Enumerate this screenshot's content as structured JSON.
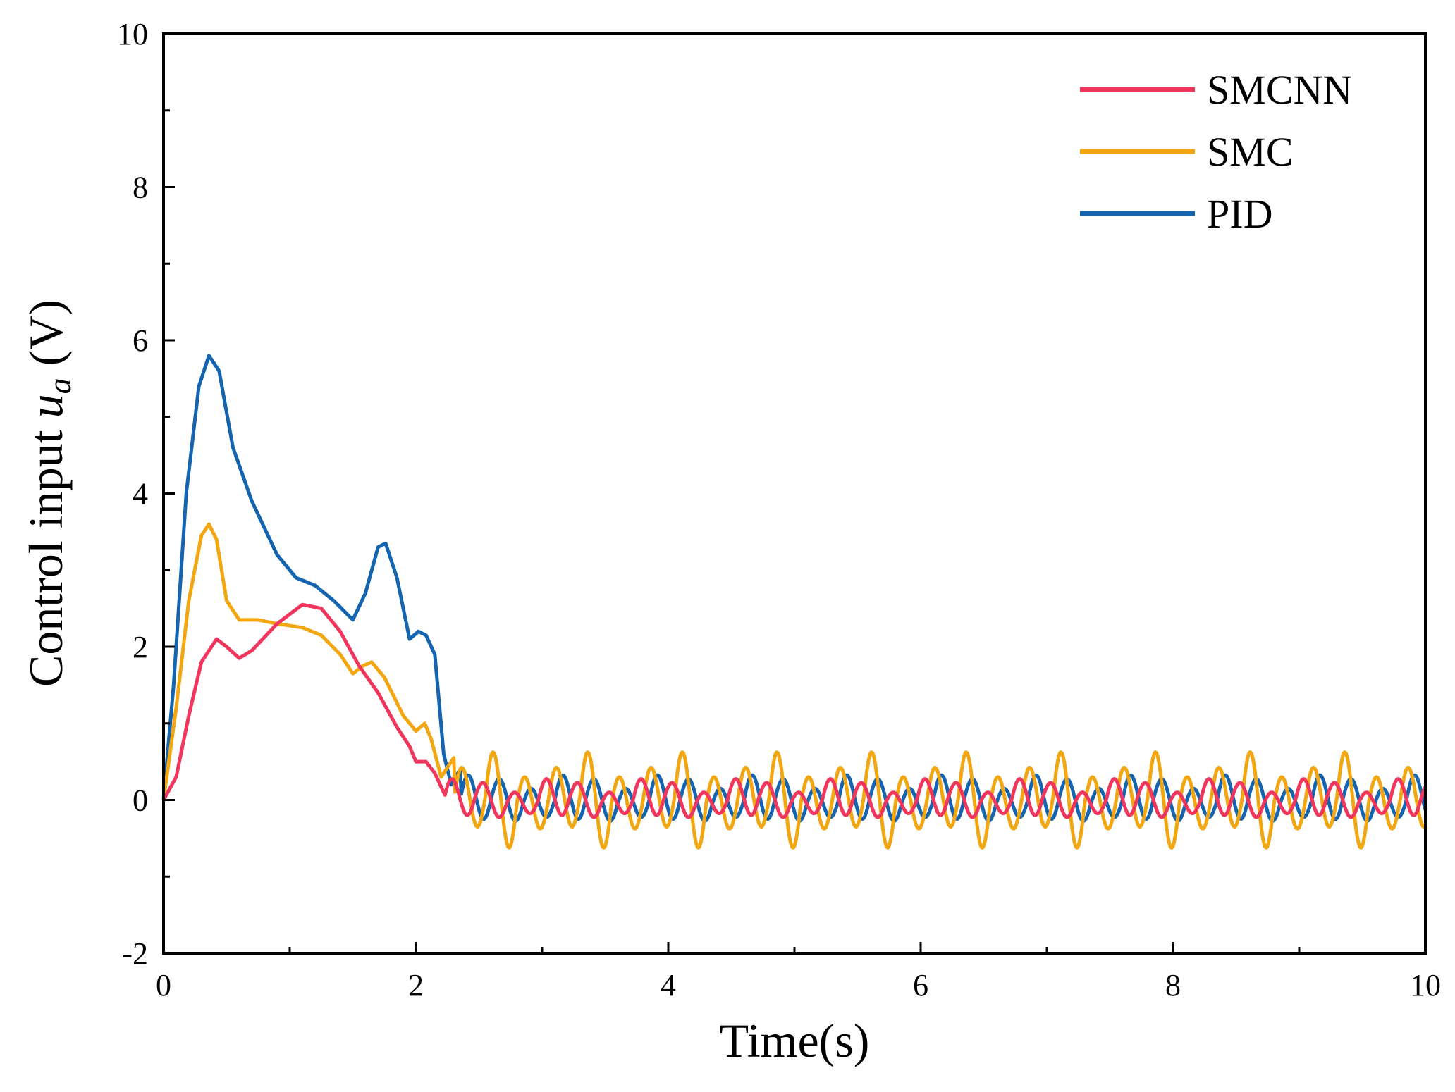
{
  "chart_data": {
    "type": "line",
    "title": "",
    "xlabel": "Time(s)",
    "ylabel_prefix": "Control input ",
    "ylabel_var": "u",
    "ylabel_sub": "a",
    "ylabel_suffix": " (V)",
    "xlim": [
      0,
      10
    ],
    "ylim": [
      -2,
      10
    ],
    "xticks": [
      0,
      2,
      4,
      6,
      8,
      10
    ],
    "yticks": [
      -2,
      0,
      2,
      4,
      6,
      8,
      10
    ],
    "xtick_labels": [
      "0",
      "2",
      "4",
      "6",
      "8",
      "10"
    ],
    "ytick_labels": [
      "-2",
      "0",
      "2",
      "4",
      "6",
      "8",
      "10"
    ],
    "legend_position": "top-right",
    "grid": false,
    "series": [
      {
        "name": "SMCNN",
        "color": "#f0365c",
        "transient": [
          [
            0,
            0
          ],
          [
            0.1,
            0.3
          ],
          [
            0.2,
            1.1
          ],
          [
            0.3,
            1.8
          ],
          [
            0.42,
            2.1
          ],
          [
            0.5,
            2.0
          ],
          [
            0.6,
            1.85
          ],
          [
            0.7,
            1.95
          ],
          [
            0.9,
            2.3
          ],
          [
            1.1,
            2.55
          ],
          [
            1.25,
            2.5
          ],
          [
            1.4,
            2.2
          ],
          [
            1.55,
            1.75
          ],
          [
            1.7,
            1.4
          ],
          [
            1.85,
            0.95
          ],
          [
            1.95,
            0.7
          ],
          [
            2.0,
            0.5
          ],
          [
            2.08,
            0.5
          ],
          [
            2.15,
            0.35
          ],
          [
            2.22,
            0.1
          ]
        ],
        "osc_start": 2.22,
        "osc_amps": [
          0.25,
          0.2,
          0.15
        ]
      },
      {
        "name": "SMC",
        "color": "#f2a712",
        "transient": [
          [
            0,
            0
          ],
          [
            0.1,
            1.2
          ],
          [
            0.2,
            2.6
          ],
          [
            0.3,
            3.45
          ],
          [
            0.36,
            3.6
          ],
          [
            0.42,
            3.4
          ],
          [
            0.5,
            2.6
          ],
          [
            0.6,
            2.35
          ],
          [
            0.75,
            2.35
          ],
          [
            0.9,
            2.3
          ],
          [
            1.1,
            2.25
          ],
          [
            1.25,
            2.15
          ],
          [
            1.4,
            1.9
          ],
          [
            1.5,
            1.65
          ],
          [
            1.58,
            1.75
          ],
          [
            1.65,
            1.8
          ],
          [
            1.75,
            1.6
          ],
          [
            1.9,
            1.1
          ],
          [
            2.0,
            0.9
          ],
          [
            2.07,
            1.0
          ],
          [
            2.12,
            0.8
          ],
          [
            2.2,
            0.3
          ],
          [
            2.3,
            0.55
          ]
        ],
        "osc_start": 2.3,
        "osc_amps": [
          0.4,
          0.6,
          0.35
        ]
      },
      {
        "name": "PID",
        "color": "#1564b0",
        "transient": [
          [
            0,
            0
          ],
          [
            0.08,
            1.5
          ],
          [
            0.18,
            4.0
          ],
          [
            0.28,
            5.4
          ],
          [
            0.36,
            5.8
          ],
          [
            0.44,
            5.6
          ],
          [
            0.55,
            4.6
          ],
          [
            0.7,
            3.9
          ],
          [
            0.9,
            3.2
          ],
          [
            1.05,
            2.9
          ],
          [
            1.2,
            2.8
          ],
          [
            1.35,
            2.6
          ],
          [
            1.5,
            2.35
          ],
          [
            1.6,
            2.7
          ],
          [
            1.7,
            3.3
          ],
          [
            1.76,
            3.35
          ],
          [
            1.85,
            2.9
          ],
          [
            1.95,
            2.1
          ],
          [
            2.02,
            2.2
          ],
          [
            2.08,
            2.15
          ],
          [
            2.15,
            1.9
          ],
          [
            2.22,
            0.6
          ],
          [
            2.28,
            0.2
          ],
          [
            2.35,
            0.4
          ]
        ],
        "osc_start": 2.35,
        "osc_amps": [
          0.3,
          0.25,
          0.2
        ]
      }
    ],
    "osc_end": 10,
    "osc_period": 0.25,
    "osc_beat_period": 0.75
  }
}
